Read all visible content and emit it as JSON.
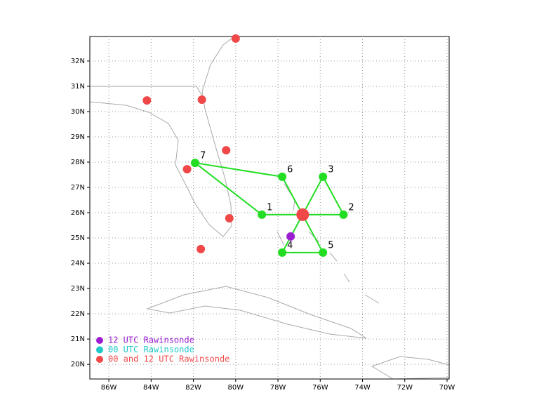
{
  "chart_data": {
    "type": "scatter",
    "xlim": [
      -86.9,
      -69.9
    ],
    "ylim": [
      19.42,
      32.97
    ],
    "grid": true,
    "xticks": [
      {
        "value": -86,
        "label": "86W"
      },
      {
        "value": -84,
        "label": "84W"
      },
      {
        "value": -82,
        "label": "82W"
      },
      {
        "value": -80,
        "label": "80W"
      },
      {
        "value": -78,
        "label": "78W"
      },
      {
        "value": -76,
        "label": "76W"
      },
      {
        "value": -74,
        "label": "74W"
      },
      {
        "value": -72,
        "label": "72W"
      },
      {
        "value": -70,
        "label": "70W"
      }
    ],
    "yticks": [
      {
        "value": 20,
        "label": "20N"
      },
      {
        "value": 21,
        "label": "21N"
      },
      {
        "value": 22,
        "label": "22N"
      },
      {
        "value": 23,
        "label": "23N"
      },
      {
        "value": 24,
        "label": "24N"
      },
      {
        "value": 25,
        "label": "25N"
      },
      {
        "value": 26,
        "label": "26N"
      },
      {
        "value": 27,
        "label": "27N"
      },
      {
        "value": 28,
        "label": "28N"
      },
      {
        "value": 29,
        "label": "29N"
      },
      {
        "value": 30,
        "label": "30N"
      },
      {
        "value": 31,
        "label": "31N"
      },
      {
        "value": 32,
        "label": "32N"
      }
    ],
    "series": [
      {
        "name": "12 UTC Rawinsonde",
        "color": "#9b1fd1",
        "x": [
          -77.4
        ],
        "values": [
          25.06
        ]
      },
      {
        "name": "00 UTC Rawinsonde",
        "color": "#20c8c8",
        "x": [],
        "values": []
      },
      {
        "name": "00 and 12 UTC Rawinsonde",
        "color": "#f04848",
        "x": [
          -80.0,
          -84.2,
          -81.6,
          -80.45,
          -82.3,
          -80.3,
          -81.65
        ],
        "values": [
          32.89,
          30.44,
          30.47,
          28.47,
          27.72,
          25.78,
          24.56
        ]
      }
    ],
    "center": {
      "color": "#f04848",
      "x": -76.83,
      "values": 25.92
    },
    "dropsondes": {
      "color": "#22dd22",
      "labels": [
        "1",
        "2",
        "3",
        "4",
        "5",
        "6",
        "7"
      ],
      "x": [
        -78.76,
        -74.9,
        -75.87,
        -77.8,
        -75.87,
        -77.8,
        -81.92
      ],
      "values": [
        25.92,
        25.92,
        27.42,
        24.42,
        24.42,
        27.42,
        27.97
      ],
      "legs": [
        [
          6,
          5
        ],
        [
          6,
          0
        ],
        [
          0,
          1
        ],
        [
          2,
          1
        ],
        [
          2,
          3
        ],
        [
          5,
          4
        ],
        [
          3,
          4
        ]
      ]
    }
  }
}
